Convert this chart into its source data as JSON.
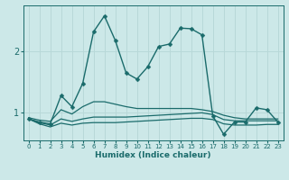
{
  "xlabel": "Humidex (Indice chaleur)",
  "bg_color": "#cce8e8",
  "line_color": "#1a6b6b",
  "grid_color": "#b8d8d8",
  "xlim": [
    -0.5,
    23.5
  ],
  "ylim": [
    0.55,
    2.75
  ],
  "yticks": [
    1,
    2
  ],
  "xticks": [
    0,
    1,
    2,
    3,
    4,
    5,
    6,
    7,
    8,
    9,
    10,
    11,
    12,
    13,
    14,
    15,
    16,
    17,
    18,
    19,
    20,
    21,
    22,
    23
  ],
  "series": [
    {
      "x": [
        0,
        1,
        2,
        3,
        4,
        5,
        6,
        7,
        8,
        9,
        10,
        11,
        12,
        13,
        14,
        15,
        16,
        17,
        18,
        19,
        20,
        21,
        22,
        23
      ],
      "y": [
        0.9,
        0.85,
        0.82,
        1.28,
        1.1,
        1.48,
        2.32,
        2.58,
        2.18,
        1.65,
        1.55,
        1.75,
        2.08,
        2.12,
        2.38,
        2.37,
        2.27,
        0.95,
        0.65,
        0.85,
        0.85,
        1.08,
        1.05,
        0.85
      ],
      "marker": "D",
      "markersize": 2.5,
      "linewidth": 1.0,
      "has_marker": true
    },
    {
      "x": [
        0,
        1,
        2,
        3,
        4,
        5,
        6,
        7,
        8,
        9,
        10,
        11,
        12,
        13,
        14,
        15,
        16,
        17,
        18,
        19,
        20,
        21,
        22,
        23
      ],
      "y": [
        0.92,
        0.88,
        0.86,
        1.05,
        0.98,
        1.1,
        1.18,
        1.18,
        1.14,
        1.1,
        1.07,
        1.07,
        1.07,
        1.07,
        1.07,
        1.07,
        1.05,
        1.02,
        0.96,
        0.92,
        0.9,
        0.9,
        0.9,
        0.9
      ],
      "marker": "",
      "markersize": 0,
      "linewidth": 0.9,
      "has_marker": false
    },
    {
      "x": [
        0,
        1,
        2,
        3,
        4,
        5,
        6,
        7,
        8,
        9,
        10,
        11,
        12,
        13,
        14,
        15,
        16,
        17,
        18,
        19,
        20,
        21,
        22,
        23
      ],
      "y": [
        0.9,
        0.84,
        0.8,
        0.9,
        0.86,
        0.9,
        0.93,
        0.93,
        0.93,
        0.93,
        0.94,
        0.95,
        0.96,
        0.97,
        0.98,
        0.99,
        1.0,
        0.97,
        0.89,
        0.87,
        0.87,
        0.87,
        0.87,
        0.87
      ],
      "marker": "",
      "markersize": 0,
      "linewidth": 0.9,
      "has_marker": false
    },
    {
      "x": [
        0,
        1,
        2,
        3,
        4,
        5,
        6,
        7,
        8,
        9,
        10,
        11,
        12,
        13,
        14,
        15,
        16,
        17,
        18,
        19,
        20,
        21,
        22,
        23
      ],
      "y": [
        0.9,
        0.82,
        0.77,
        0.83,
        0.8,
        0.83,
        0.84,
        0.84,
        0.84,
        0.85,
        0.86,
        0.87,
        0.88,
        0.89,
        0.9,
        0.91,
        0.91,
        0.89,
        0.82,
        0.8,
        0.8,
        0.8,
        0.81,
        0.81
      ],
      "marker": "",
      "markersize": 0,
      "linewidth": 0.9,
      "has_marker": false
    }
  ]
}
